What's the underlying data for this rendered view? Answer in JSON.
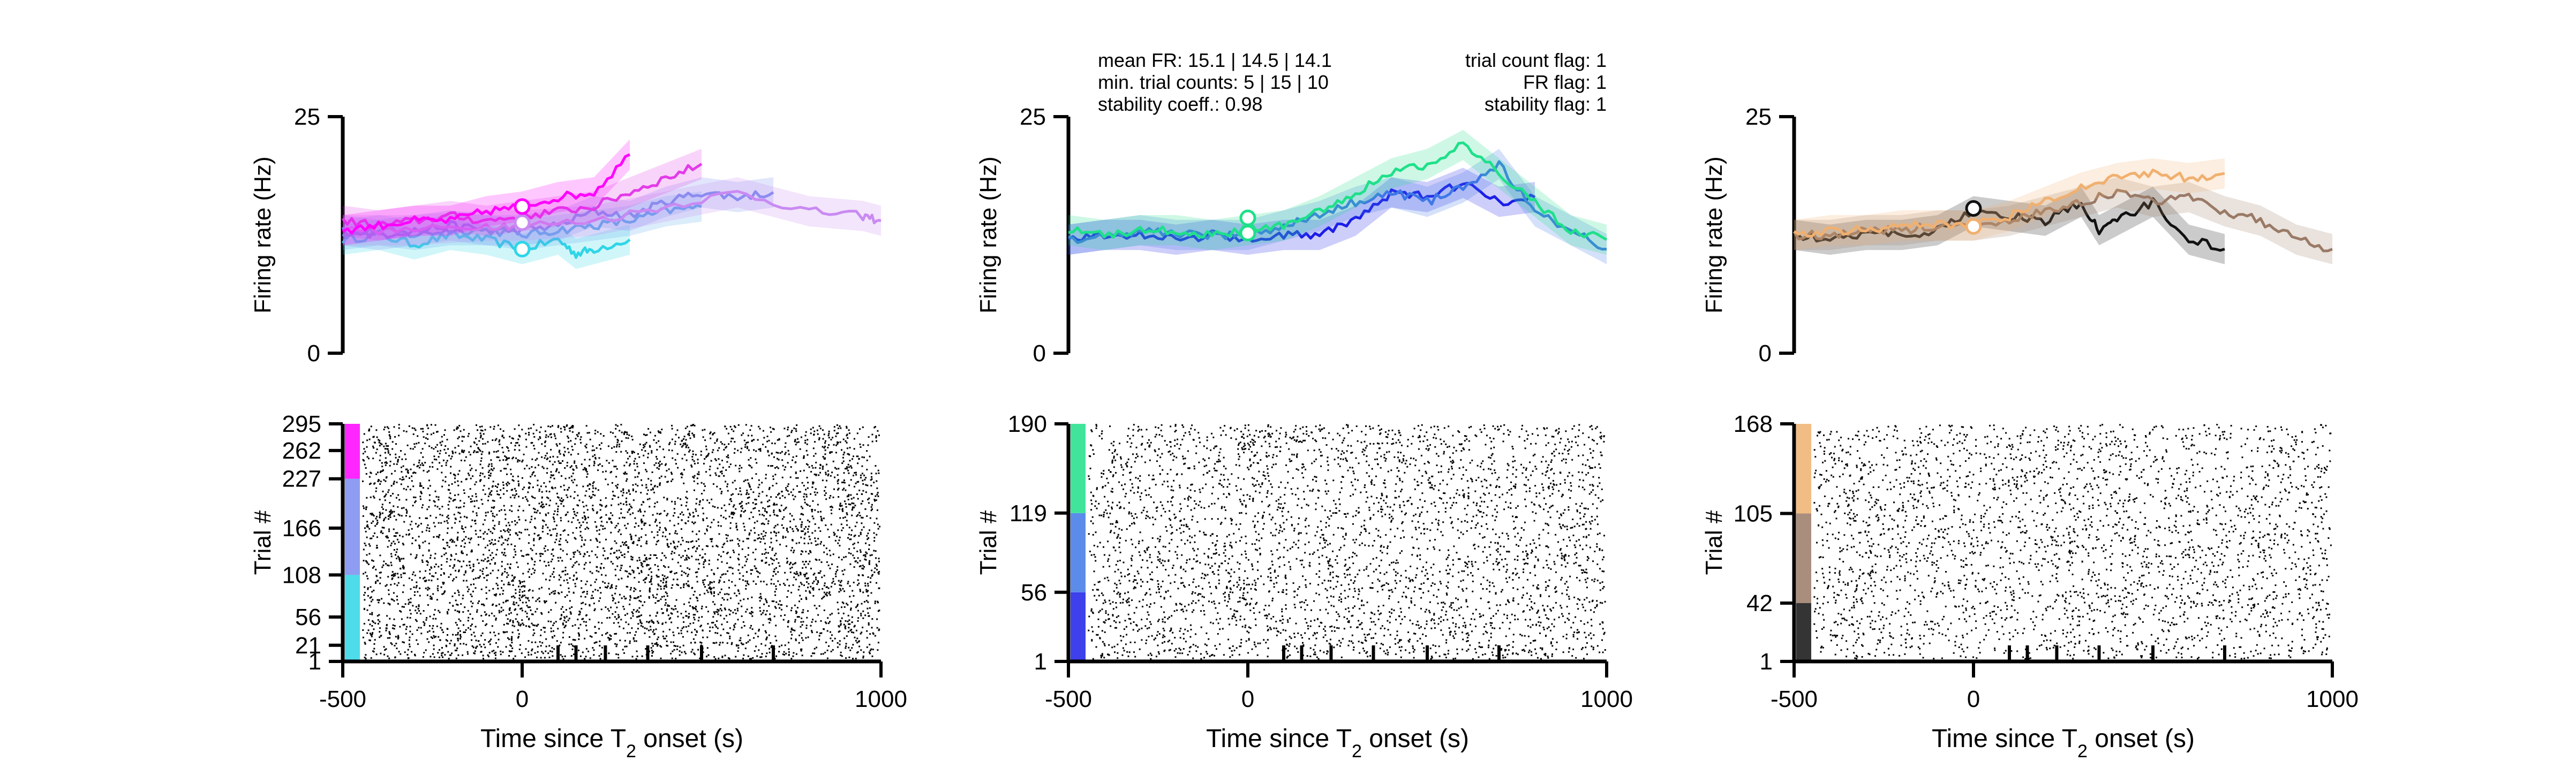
{
  "figure": {
    "stats": {
      "left": [
        "mean FR: 15.1 | 14.5 | 14.1",
        "min. trial counts: 5 | 15 | 10",
        "stability coeff.: 0.98"
      ],
      "right": [
        "trial count flag: 1",
        "FR flag: 1",
        "stability flag: 1"
      ]
    }
  },
  "chart_data": [
    {
      "type": "line",
      "ylabel": "Firing rate (Hz)",
      "ylim": [
        0,
        25
      ],
      "yticks": [
        "0",
        "25"
      ],
      "xlim": [
        -500,
        1000
      ],
      "series": [
        {
          "color": "#2fd6e6",
          "x": [
            -500,
            -400,
            -300,
            -200,
            -100,
            0,
            100,
            150,
            200,
            300
          ],
          "y": [
            12,
            12.5,
            11.5,
            12.5,
            12,
            11,
            12,
            10.5,
            11,
            12
          ]
        },
        {
          "color": "#5aa8ee",
          "x": [
            -500,
            -400,
            -300,
            -200,
            -100,
            0,
            100,
            200,
            300,
            400,
            500
          ],
          "y": [
            12.5,
            13,
            12.5,
            13,
            13,
            12.5,
            13,
            13.5,
            14,
            15,
            15.5
          ]
        },
        {
          "color": "#7a8cf0",
          "x": [
            -500,
            -400,
            -300,
            -200,
            -100,
            0,
            100,
            200,
            300,
            400,
            500,
            600,
            700
          ],
          "y": [
            13,
            12.5,
            13,
            13.5,
            13,
            13,
            13.5,
            15,
            14.5,
            16,
            17,
            16.5,
            17
          ]
        },
        {
          "color": "#c98af2",
          "x": [
            -500,
            -300,
            -100,
            0,
            200,
            400,
            600,
            800,
            950,
            1000
          ],
          "y": [
            13,
            13,
            13.5,
            13.5,
            14,
            15.5,
            17,
            15,
            14.5,
            14
          ]
        },
        {
          "color": "#e23ce8",
          "x": [
            -500,
            -400,
            -300,
            -200,
            -100,
            0,
            100,
            200,
            300,
            400,
            500
          ],
          "y": [
            14,
            13.5,
            14,
            14.5,
            14,
            14.5,
            15,
            15.5,
            17,
            18.5,
            20
          ]
        },
        {
          "color": "#ff00ff",
          "x": [
            -500,
            -400,
            -300,
            -200,
            -100,
            0,
            100,
            200,
            300
          ],
          "y": [
            13,
            13.5,
            14,
            14,
            15,
            15.5,
            16.5,
            17,
            21
          ]
        }
      ],
      "markers": [
        {
          "x": 0,
          "y": 11,
          "color": "#2fd6e6"
        },
        {
          "x": 0,
          "y": 13.8,
          "color": "#c98af2"
        },
        {
          "x": 0,
          "y": 15.5,
          "color": "#ff00ff"
        }
      ],
      "raster": {
        "ylabel": "Trial #",
        "yticks": [
          "1",
          "21",
          "56",
          "108",
          "166",
          "227",
          "262",
          "295"
        ],
        "ytick_values": [
          1,
          21,
          56,
          108,
          166,
          227,
          262,
          295
        ],
        "ylim": [
          1,
          295
        ],
        "xlabel": "Time since T",
        "xlabel_sub": "2",
        "xlabel_suffix": " onset (s)",
        "xticks": [
          "-500",
          "0",
          "1000"
        ],
        "xtick_values": [
          -500,
          0,
          1000
        ],
        "minor_xticks": [
          100,
          150,
          232,
          350,
          500,
          700
        ],
        "x_end": 1000,
        "colorbar": [
          {
            "color": "#2fd6e6",
            "from": 1,
            "to": 108
          },
          {
            "color": "#7a8cf0",
            "from": 108,
            "to": 227
          },
          {
            "color": "#ff00ff",
            "from": 227,
            "to": 295
          }
        ]
      }
    },
    {
      "type": "line",
      "ylabel": "Firing rate (Hz)",
      "ylim": [
        0,
        25
      ],
      "yticks": [
        "0",
        "25"
      ],
      "xlim": [
        -500,
        1000
      ],
      "series": [
        {
          "color": "#1b1ee8",
          "x": [
            -500,
            -400,
            -300,
            -200,
            -100,
            0,
            100,
            200,
            300,
            400,
            500,
            600,
            700,
            800
          ],
          "y": [
            12,
            12.5,
            12.5,
            12,
            12.5,
            12,
            12.5,
            12.5,
            14,
            17,
            16.5,
            18,
            16,
            16.5
          ]
        },
        {
          "color": "#3f78e6",
          "x": [
            -500,
            -400,
            -300,
            -200,
            -100,
            0,
            100,
            200,
            300,
            400,
            500,
            600,
            700,
            800,
            900,
            1000
          ],
          "y": [
            12,
            12.5,
            13,
            12.5,
            12.5,
            12.5,
            13.5,
            14.5,
            16,
            17,
            16,
            17.5,
            20,
            15,
            13,
            11
          ]
        },
        {
          "color": "#1fe08a",
          "x": [
            -500,
            -400,
            -300,
            -200,
            -100,
            0,
            100,
            200,
            300,
            400,
            500,
            600,
            700,
            800,
            900,
            1000
          ],
          "y": [
            13,
            12.5,
            13,
            13,
            12.5,
            13,
            13.5,
            15,
            17,
            19,
            20,
            22,
            19,
            16,
            13,
            12
          ]
        }
      ],
      "markers": [
        {
          "x": 0,
          "y": 12.7,
          "color": "#1fe08a"
        },
        {
          "x": 0,
          "y": 14.3,
          "color": "#1fe08a"
        }
      ],
      "raster": {
        "ylabel": "Trial #",
        "yticks": [
          "1",
          "56",
          "119",
          "190"
        ],
        "ytick_values": [
          1,
          56,
          119,
          190
        ],
        "ylim": [
          1,
          190
        ],
        "xlabel": "Time since T",
        "xlabel_sub": "2",
        "xlabel_suffix": " onset (s)",
        "xticks": [
          "-500",
          "0",
          "1000"
        ],
        "xtick_values": [
          -500,
          0,
          1000
        ],
        "minor_xticks": [
          100,
          150,
          232,
          350,
          500,
          700
        ],
        "x_end": 1000,
        "colorbar": [
          {
            "color": "#1b1ee8",
            "from": 1,
            "to": 56
          },
          {
            "color": "#3f78e6",
            "from": 56,
            "to": 119
          },
          {
            "color": "#1fe08a",
            "from": 119,
            "to": 190
          }
        ]
      }
    },
    {
      "type": "line",
      "ylabel": "Firing rate (Hz)",
      "ylim": [
        0,
        25
      ],
      "yticks": [
        "0",
        "25"
      ],
      "xlim": [
        -500,
        1000
      ],
      "series": [
        {
          "color": "#111111",
          "x": [
            -500,
            -400,
            -300,
            -200,
            -100,
            0,
            100,
            200,
            300,
            350,
            400,
            500,
            600,
            700
          ],
          "y": [
            12.5,
            12,
            12.5,
            12.5,
            13,
            15,
            14.5,
            14,
            16,
            13,
            14,
            16,
            12,
            11
          ]
        },
        {
          "color": "#9a7a66",
          "x": [
            -500,
            -400,
            -300,
            -200,
            -100,
            0,
            100,
            200,
            300,
            400,
            500,
            600,
            700,
            800,
            900,
            1000
          ],
          "y": [
            12.5,
            12.5,
            13,
            13,
            13.5,
            13.5,
            14,
            15,
            16,
            17,
            16,
            16.5,
            15,
            14,
            12,
            11
          ]
        },
        {
          "color": "#f0b070",
          "x": [
            -500,
            -400,
            -300,
            -200,
            -100,
            0,
            100,
            200,
            300,
            400,
            500,
            600,
            700
          ],
          "y": [
            12.5,
            13,
            13,
            13.5,
            13.5,
            13.5,
            14.5,
            16,
            17.5,
            18.5,
            19,
            18.5,
            19
          ]
        }
      ],
      "markers": [
        {
          "x": 0,
          "y": 13.4,
          "color": "#f0b070"
        },
        {
          "x": 0,
          "y": 15.3,
          "color": "#111111"
        }
      ],
      "raster": {
        "ylabel": "Trial #",
        "yticks": [
          "1",
          "42",
          "105",
          "168"
        ],
        "ytick_values": [
          1,
          42,
          105,
          168
        ],
        "ylim": [
          1,
          168
        ],
        "xlabel": "Time since T",
        "xlabel_sub": "2",
        "xlabel_suffix": " onset (s)",
        "xticks": [
          "-500",
          "0",
          "1000"
        ],
        "xtick_values": [
          -500,
          0,
          1000
        ],
        "minor_xticks": [
          100,
          150,
          232,
          350,
          500,
          700
        ],
        "x_end": 1000,
        "colorbar": [
          {
            "color": "#111111",
            "from": 1,
            "to": 42
          },
          {
            "color": "#9a7a66",
            "from": 42,
            "to": 105
          },
          {
            "color": "#f0b070",
            "from": 105,
            "to": 168
          }
        ]
      }
    }
  ]
}
